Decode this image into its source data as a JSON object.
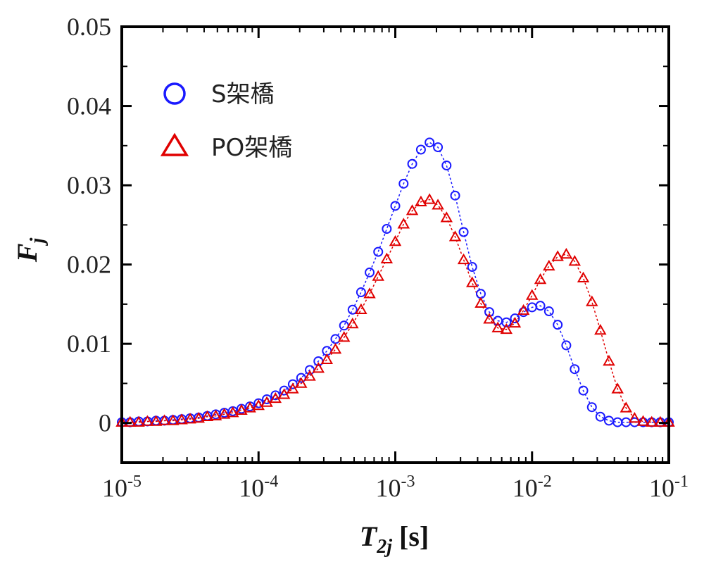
{
  "chart_data": {
    "type": "scatter",
    "x_scale": "log",
    "xlim": [
      1e-05,
      0.1
    ],
    "ylim": [
      -0.005,
      0.05
    ],
    "x_ticks": [
      {
        "value": 1e-05,
        "base": "10",
        "exp": "-5"
      },
      {
        "value": 0.0001,
        "base": "10",
        "exp": "-4"
      },
      {
        "value": 0.001,
        "base": "10",
        "exp": "-3"
      },
      {
        "value": 0.01,
        "base": "10",
        "exp": "-2"
      },
      {
        "value": 0.1,
        "base": "10",
        "exp": "-1"
      }
    ],
    "y_ticks": [
      {
        "value": 0,
        "label": "0"
      },
      {
        "value": 0.01,
        "label": "0.01"
      },
      {
        "value": 0.02,
        "label": "0.02"
      },
      {
        "value": 0.03,
        "label": "0.03"
      },
      {
        "value": 0.04,
        "label": "0.04"
      },
      {
        "value": 0.05,
        "label": "0.05"
      }
    ],
    "xlabel": {
      "main": "T",
      "sub": "2j",
      "unit": " [s]"
    },
    "ylabel": {
      "main": "F",
      "sub": "j"
    },
    "legend_position": "top-left",
    "grid": false,
    "series": [
      {
        "name": "S架橋",
        "marker": "circle",
        "color": "#1a1aff",
        "x": [
          1e-05,
          1.15e-05,
          1.33e-05,
          1.54e-05,
          1.78e-05,
          2.05e-05,
          2.37e-05,
          2.74e-05,
          3.16e-05,
          3.65e-05,
          4.22e-05,
          4.87e-05,
          5.62e-05,
          6.49e-05,
          7.5e-05,
          8.66e-05,
          0.0001,
          0.000115,
          0.000133,
          0.000154,
          0.000178,
          0.000205,
          0.000237,
          0.000274,
          0.000316,
          0.000365,
          0.000422,
          0.000487,
          0.000562,
          0.000649,
          0.00075,
          0.000866,
          0.001,
          0.00115,
          0.00133,
          0.00154,
          0.00178,
          0.00205,
          0.00237,
          0.00274,
          0.00316,
          0.00365,
          0.00422,
          0.00487,
          0.00562,
          0.00649,
          0.0075,
          0.00866,
          0.01,
          0.0115,
          0.0133,
          0.0154,
          0.0178,
          0.0205,
          0.0237,
          0.0274,
          0.0316,
          0.0365,
          0.0422,
          0.0487,
          0.0562,
          0.0649,
          0.075,
          0.0866,
          0.1
        ],
        "y": [
          0.0001,
          0.0001,
          0.0002,
          0.0002,
          0.0003,
          0.0003,
          0.0004,
          0.0005,
          0.0006,
          0.0007,
          0.0009,
          0.0011,
          0.0013,
          0.0015,
          0.0018,
          0.0021,
          0.0025,
          0.003,
          0.0035,
          0.0041,
          0.0049,
          0.0057,
          0.0067,
          0.0078,
          0.0091,
          0.0106,
          0.0123,
          0.0143,
          0.0165,
          0.019,
          0.0216,
          0.0245,
          0.0274,
          0.0302,
          0.0327,
          0.0345,
          0.0354,
          0.0348,
          0.0325,
          0.0287,
          0.0241,
          0.0197,
          0.0163,
          0.014,
          0.0129,
          0.0127,
          0.0132,
          0.014,
          0.0146,
          0.0148,
          0.0141,
          0.0124,
          0.0098,
          0.0068,
          0.0041,
          0.002,
          0.0008,
          0.0003,
          0.0001,
          0.0001,
          0.0001,
          0.0001,
          0.0001,
          0.0001,
          0.0001
        ]
      },
      {
        "name": "PO架橋",
        "marker": "triangle",
        "color": "#e00000",
        "x": [
          1e-05,
          1.15e-05,
          1.33e-05,
          1.54e-05,
          1.78e-05,
          2.05e-05,
          2.37e-05,
          2.74e-05,
          3.16e-05,
          3.65e-05,
          4.22e-05,
          4.87e-05,
          5.62e-05,
          6.49e-05,
          7.5e-05,
          8.66e-05,
          0.0001,
          0.000115,
          0.000133,
          0.000154,
          0.000178,
          0.000205,
          0.000237,
          0.000274,
          0.000316,
          0.000365,
          0.000422,
          0.000487,
          0.000562,
          0.000649,
          0.00075,
          0.000866,
          0.001,
          0.00115,
          0.00133,
          0.00154,
          0.00178,
          0.00205,
          0.00237,
          0.00274,
          0.00316,
          0.00365,
          0.00422,
          0.00487,
          0.00562,
          0.00649,
          0.0075,
          0.00866,
          0.01,
          0.0115,
          0.0133,
          0.0154,
          0.0178,
          0.0205,
          0.0237,
          0.0274,
          0.0316,
          0.0365,
          0.0422,
          0.0487,
          0.0562,
          0.0649,
          0.075,
          0.0866,
          0.1
        ],
        "y": [
          0.0001,
          0.0001,
          0.0001,
          0.0002,
          0.0002,
          0.0003,
          0.0003,
          0.0004,
          0.0005,
          0.0006,
          0.0008,
          0.0009,
          0.0011,
          0.0013,
          0.0016,
          0.0019,
          0.0022,
          0.0026,
          0.0031,
          0.0036,
          0.0043,
          0.005,
          0.0059,
          0.0069,
          0.008,
          0.0093,
          0.0108,
          0.0125,
          0.0143,
          0.0163,
          0.0185,
          0.0207,
          0.0229,
          0.0251,
          0.0268,
          0.0279,
          0.0282,
          0.0275,
          0.0259,
          0.0235,
          0.0206,
          0.0177,
          0.0151,
          0.0131,
          0.012,
          0.0118,
          0.0126,
          0.0142,
          0.0161,
          0.0181,
          0.0198,
          0.021,
          0.0213,
          0.0204,
          0.0183,
          0.0153,
          0.0117,
          0.0078,
          0.0043,
          0.0019,
          0.0006,
          0.0002,
          0.0001,
          0.0001,
          0.0001
        ]
      }
    ]
  }
}
